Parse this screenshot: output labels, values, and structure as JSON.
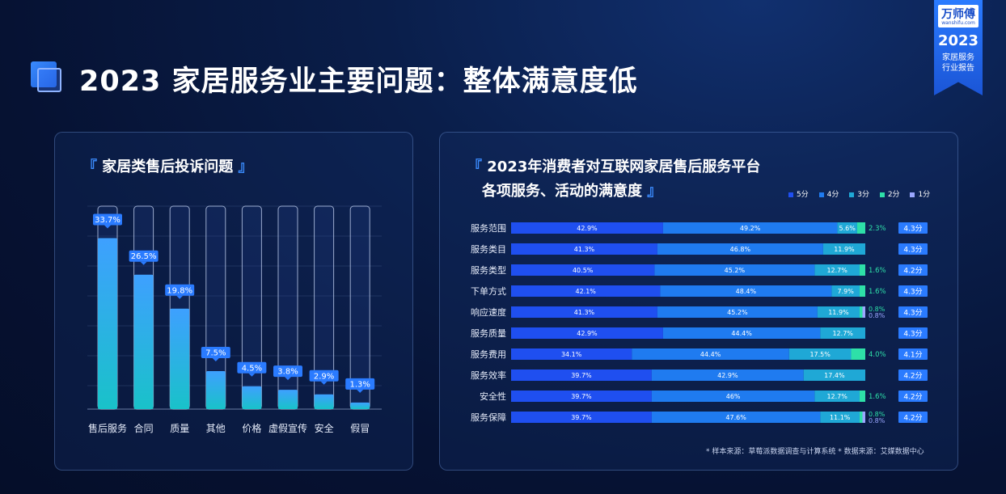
{
  "page": {
    "title": "2023 家居服务业主要问题：整体满意度低"
  },
  "badge": {
    "logo": "万师傅",
    "logo_sub": "wanshifu.com",
    "year": "2023",
    "line1": "家居服务",
    "line2": "行业报告"
  },
  "colors": {
    "accent": "#2a7bff",
    "bar_top": "#3ea0ff",
    "bar_bottom": "#19c2c9",
    "s5": "#1f4ff0",
    "s4": "#1f7bf0",
    "s3": "#1fa8d6",
    "s2": "#2ee0a8",
    "s1": "#9aa7ff"
  },
  "left_panel": {
    "title": "家居类售后投诉问题"
  },
  "right_panel": {
    "title_line1": "2023年消费者对互联网家居售后服务平台",
    "title_line2": "各项服务、活动的满意度"
  },
  "source_note": "* 样本来源：草莓派数据调查与计算系统   * 数据来源：艾媒数据中心",
  "chart_data": [
    {
      "type": "bar",
      "title": "家居类售后投诉问题",
      "categories": [
        "售后服务",
        "合同",
        "质量",
        "其他",
        "价格",
        "虚假宣传",
        "安全",
        "假冒"
      ],
      "values": [
        33.7,
        26.5,
        19.8,
        7.5,
        4.5,
        3.8,
        2.9,
        1.3
      ],
      "labels": [
        "33.7%",
        "26.5%",
        "19.8%",
        "7.5%",
        "4.5%",
        "3.8%",
        "2.9%",
        "1.3%"
      ],
      "ylim": [
        0,
        40
      ],
      "grid": true
    },
    {
      "type": "bar",
      "orientation": "horizontal",
      "stacked": true,
      "title": "2023年消费者对互联网家居售后服务平台各项服务、活动的满意度",
      "categories": [
        "服务范围",
        "服务类目",
        "服务类型",
        "下单方式",
        "响应速度",
        "服务质量",
        "服务费用",
        "服务效率",
        "安全性",
        "服务保障"
      ],
      "series": [
        {
          "name": "5分",
          "values": [
            42.9,
            41.3,
            40.5,
            42.1,
            41.3,
            42.9,
            34.1,
            39.7,
            39.7,
            39.7
          ],
          "labels": [
            "42.9%",
            "41.3%",
            "40.5%",
            "42.1%",
            "41.3%",
            "42.9%",
            "34.1%",
            "39.7%",
            "39.7%",
            "39.7%"
          ]
        },
        {
          "name": "4分",
          "values": [
            49.2,
            46.8,
            45.2,
            48.4,
            45.2,
            44.4,
            44.4,
            42.9,
            46.0,
            47.6
          ],
          "labels": [
            "49.2%",
            "46.8%",
            "45.2%",
            "48.4%",
            "45.2%",
            "44.4%",
            "44.4%",
            "42.9%",
            "46%",
            "47.6%"
          ]
        },
        {
          "name": "3分",
          "values": [
            5.6,
            11.9,
            12.7,
            7.9,
            11.9,
            12.7,
            17.5,
            17.4,
            12.7,
            11.1
          ],
          "labels": [
            "5.6%",
            "11.9%",
            "12.7%",
            "7.9%",
            "11.9%",
            "12.7%",
            "17.5%",
            "17.4%",
            "12.7%",
            "11.1%"
          ]
        },
        {
          "name": "2分",
          "values": [
            2.3,
            0,
            1.6,
            1.6,
            0.8,
            0,
            4.0,
            0,
            1.6,
            0.8
          ],
          "labels": [
            "2.3%",
            "",
            "1.6%",
            "1.6%",
            "0.8%",
            "",
            "4.0%",
            "",
            "1.6%",
            "0.8%"
          ]
        },
        {
          "name": "1分",
          "values": [
            0,
            0,
            0,
            0,
            0.8,
            0,
            0,
            0,
            0,
            0.8
          ],
          "labels": [
            "",
            "",
            "",
            "",
            "0.8%",
            "",
            "",
            "",
            "",
            "0.8%"
          ]
        }
      ],
      "scores": [
        "4.3分",
        "4.3分",
        "4.2分",
        "4.3分",
        "4.3分",
        "4.3分",
        "4.1分",
        "4.2分",
        "4.2分",
        "4.2分"
      ],
      "xlim": [
        0,
        100
      ],
      "legend_position": "top-right"
    }
  ]
}
